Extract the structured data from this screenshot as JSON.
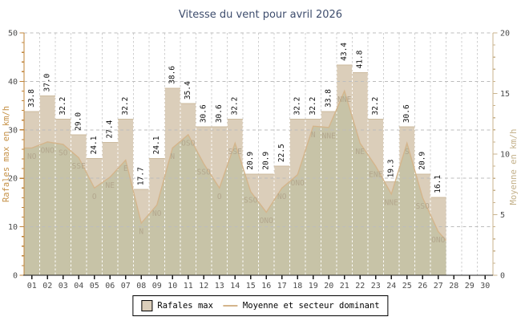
{
  "chart_data": {
    "type": "bar",
    "title": "Vitesse du vent pour avril 2026",
    "categories": [
      "01",
      "02",
      "03",
      "04",
      "05",
      "06",
      "07",
      "08",
      "09",
      "10",
      "11",
      "12",
      "13",
      "14",
      "15",
      "16",
      "17",
      "18",
      "19",
      "20",
      "21",
      "22",
      "23",
      "24",
      "25",
      "26",
      "27",
      "28",
      "29",
      "30"
    ],
    "series": [
      {
        "name": "Rafales max",
        "type": "bar",
        "axis": "left",
        "unit": "km/h",
        "values": [
          33.8,
          37.0,
          32.2,
          29.0,
          24.1,
          27.4,
          32.2,
          17.7,
          24.1,
          38.6,
          35.4,
          30.6,
          30.6,
          32.2,
          20.9,
          20.9,
          22.5,
          32.2,
          32.2,
          33.8,
          43.4,
          41.8,
          32.2,
          19.3,
          30.6,
          20.9,
          16.1,
          null,
          null,
          null
        ]
      },
      {
        "name": "Moyenne et secteur dominant",
        "type": "line-area",
        "axis": "right",
        "unit": "km/h",
        "values": [
          10.5,
          11.0,
          10.8,
          9.7,
          7.2,
          8.1,
          9.5,
          4.3,
          5.8,
          10.5,
          11.6,
          9.2,
          7.2,
          10.9,
          6.9,
          5.2,
          7.2,
          8.3,
          12.3,
          12.2,
          15.2,
          10.9,
          9.0,
          6.7,
          10.9,
          6.4,
          3.6,
          null,
          null,
          null
        ],
        "wind_directions": [
          "NO",
          "ONO",
          "SO",
          "SSE",
          "O",
          "NE",
          "E",
          "N",
          "NO",
          "N",
          "OSO",
          "SSO",
          "O",
          "SSE",
          "SSO",
          "ONO",
          "NO",
          "ONO",
          "N",
          "NNE",
          "NNE",
          "NE",
          "ENE",
          "NNE",
          "S",
          "SSO",
          "ONO",
          null,
          null,
          null
        ]
      }
    ],
    "axes": {
      "left": {
        "label": "Rafales max en km/h",
        "min": 0,
        "max": 50,
        "major_step": 10,
        "minor_step": 2,
        "tick_labels": [
          "0",
          "10",
          "20",
          "30",
          "40",
          "50"
        ],
        "color": "#c0843a",
        "label_color": "#c59045"
      },
      "right": {
        "label": "Moyenne en km/h",
        "min": 0,
        "max": 20,
        "major_step": 5,
        "minor_step": 1,
        "tick_labels": [
          "0",
          "5",
          "10",
          "15",
          "20"
        ],
        "color": "#c9b38d",
        "label_color": "#c3b089"
      },
      "x": {
        "color": "#1a1a1a"
      }
    },
    "grid": true,
    "legend_position": "bottom",
    "colors": {
      "title": "#3e4d6d",
      "bar_fill": "#dbceba",
      "bar_edge": "#ccbb9f",
      "area_fill": "rgba(158,170,128,0.32)",
      "line": "#d4b58c",
      "direction_label": "#b3a78e",
      "value_label": "#111111",
      "tick_label": "#4b4b4b",
      "h_grid": "#bcbcbc",
      "v_grid": "#cfcfcf",
      "v_grid_on_bar": "#ffffff"
    }
  },
  "legend": {
    "bar_label": "Rafales max",
    "line_label": "Moyenne et secteur dominant"
  }
}
